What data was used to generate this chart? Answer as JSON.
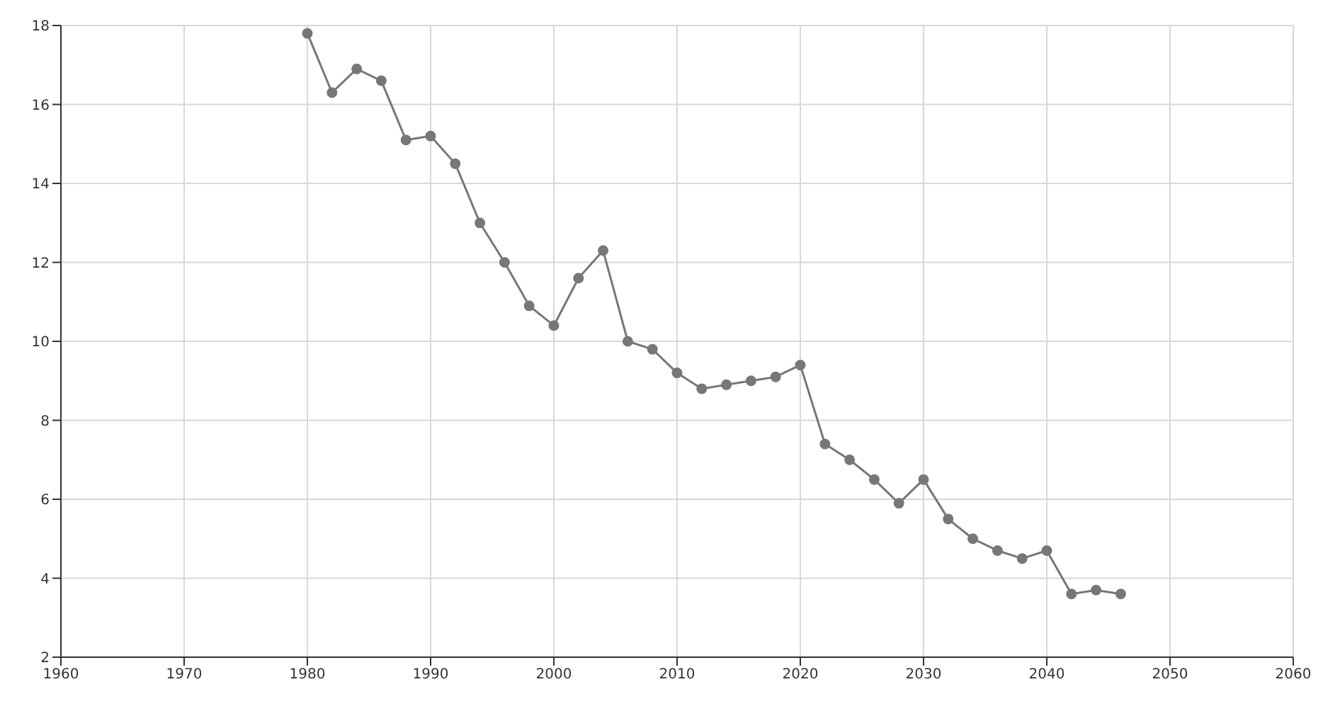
{
  "chart_data": {
    "type": "line",
    "x": [
      1980,
      1982,
      1984,
      1986,
      1988,
      1990,
      1992,
      1994,
      1996,
      1998,
      2000,
      2002,
      2004,
      2006,
      2008,
      2010,
      2012,
      2014,
      2016,
      2018,
      2020,
      2022,
      2024,
      2026,
      2028,
      2030,
      2032,
      2034,
      2036,
      2038,
      2040,
      2042,
      2044,
      2046
    ],
    "series": [
      {
        "color": "#777777",
        "values": [
          17.8,
          16.3,
          16.9,
          16.6,
          15.1,
          15.2,
          14.5,
          13.0,
          12.0,
          10.9,
          10.4,
          11.6,
          12.3,
          10.0,
          9.8,
          9.2,
          8.8,
          8.9,
          9.0,
          9.1,
          9.4,
          7.4,
          7.0,
          6.5,
          5.9,
          6.5,
          5.5,
          5.0,
          4.7,
          4.5,
          4.7,
          3.6,
          3.7,
          3.6
        ]
      }
    ],
    "xlim": [
      1960,
      2060
    ],
    "xticks": [
      1960,
      1970,
      1980,
      1990,
      2000,
      2010,
      2020,
      2030,
      2040,
      2050,
      2060
    ],
    "ylim": [
      2,
      18
    ],
    "yticks": [
      2,
      4,
      6,
      8,
      10,
      12,
      14,
      16,
      18
    ],
    "grid": true,
    "marker": "circle",
    "line_style": "solid"
  }
}
